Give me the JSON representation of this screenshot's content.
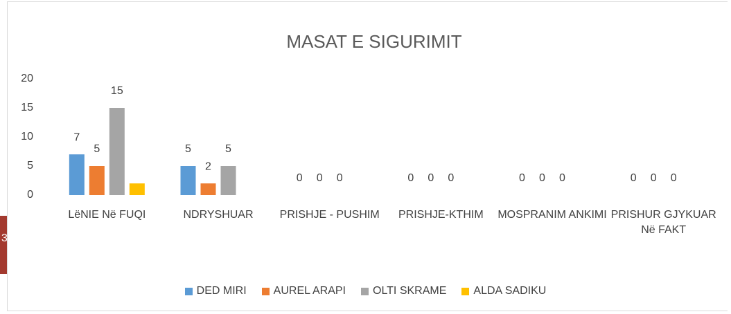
{
  "page_marker": "3",
  "chart_data": {
    "type": "bar",
    "title": "MASAT E SIGURIMIT",
    "categories": [
      "LëNIE Në FUQI",
      "NDRYSHUAR",
      "PRISHJE - PUSHIM",
      "PRISHJE-KTHIM",
      "MOSPRANIM ANKIMI",
      "PRISHUR GJYKUAR Në FAKT"
    ],
    "series": [
      {
        "name": "DED MIRI",
        "color": "#5b9bd5",
        "values": [
          7,
          5,
          0,
          0,
          0,
          0
        ],
        "data_labels": true
      },
      {
        "name": "AUREL ARAPI",
        "color": "#ed7d31",
        "values": [
          5,
          2,
          0,
          0,
          0,
          0
        ],
        "data_labels": true
      },
      {
        "name": "OLTI SKRAME",
        "color": "#a5a5a5",
        "values": [
          15,
          5,
          0,
          0,
          0,
          0
        ],
        "data_labels": true
      },
      {
        "name": "ALDA SADIKU",
        "color": "#ffc000",
        "values": [
          2,
          0,
          0,
          0,
          0,
          0
        ],
        "data_labels": false
      }
    ],
    "ylim": [
      0,
      20
    ],
    "yticks": [
      0,
      5,
      10,
      15,
      20
    ],
    "grid": false,
    "legend": "bottom"
  }
}
